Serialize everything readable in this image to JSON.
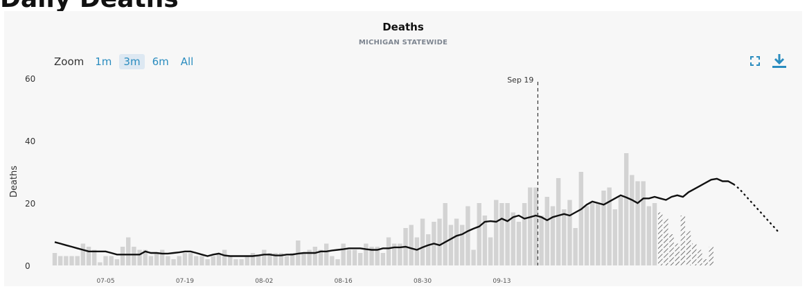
{
  "page": {
    "cut_heading": "Daily Deaths"
  },
  "toolbar": {
    "zoom_label": "Zoom",
    "zoom_options": [
      "1m",
      "3m",
      "6m",
      "All"
    ],
    "zoom_active": "3m",
    "icons": [
      "fullscreen-icon",
      "download-icon"
    ]
  },
  "colors": {
    "bar": "#d3d3d3",
    "line": "#111111",
    "projection_hatch": "#555555",
    "accent": "#2a8cbf",
    "background": "#f7f7f7"
  },
  "chart_data": {
    "type": "bar",
    "title": "Deaths",
    "subtitle": "MICHIGAN STATEWIDE",
    "ylabel": "Deaths",
    "xlabel": "",
    "ylim": [
      0,
      60
    ],
    "yticks": [
      0,
      20,
      40,
      60
    ],
    "grid": false,
    "x_start": "06-26",
    "xticks": [
      "07-05",
      "07-19",
      "08-02",
      "08-16",
      "08-30",
      "09-13"
    ],
    "marker": {
      "label": "Sep 19",
      "date": "09-19"
    },
    "series": [
      {
        "name": "",
        "style": "bars",
        "values": [
          4,
          3,
          3,
          3,
          3,
          7,
          6,
          5,
          1,
          3,
          3,
          2,
          6,
          9,
          6,
          5,
          5,
          3,
          4,
          5,
          3,
          2,
          3,
          4,
          4,
          3,
          3,
          2,
          3,
          4,
          5,
          3,
          2,
          2,
          3,
          4,
          3,
          5,
          4,
          4,
          4,
          3,
          4,
          8,
          4,
          5,
          6,
          5,
          7,
          3,
          2,
          7,
          5,
          5,
          4,
          7,
          6,
          6,
          4,
          9,
          7,
          7,
          12,
          13,
          9,
          15,
          10,
          14,
          15,
          20,
          13,
          15,
          13,
          19,
          5,
          20,
          16,
          9,
          21,
          20,
          20,
          17,
          14,
          20,
          25,
          25,
          16,
          22,
          19,
          28,
          18,
          21,
          12,
          30,
          19,
          20,
          20,
          24,
          25,
          18,
          22,
          36,
          29,
          27,
          27,
          19,
          20
        ],
        "labeled": false
      },
      {
        "name": "",
        "style": "hatched-bars",
        "values": [
          17,
          15,
          10,
          7,
          16,
          11,
          7,
          5,
          2,
          6
        ],
        "labeled": false
      },
      {
        "name": "",
        "style": "line",
        "values": [
          7.5,
          7,
          6.5,
          6,
          5.5,
          5,
          4.5,
          4.5,
          4.5,
          4.5,
          4,
          3.5,
          3.5,
          3.5,
          3.5,
          3.5,
          4.5,
          4,
          4,
          3.8,
          3.8,
          4,
          4.2,
          4.5,
          4.5,
          4,
          3.5,
          3,
          3.5,
          3.8,
          3.2,
          3,
          3,
          3,
          3,
          3,
          3.2,
          3.5,
          3.5,
          3.2,
          3.2,
          3.5,
          3.5,
          3.8,
          4,
          4,
          4,
          4.5,
          4.5,
          4.8,
          5,
          5.2,
          5.5,
          5.5,
          5.5,
          5.2,
          5,
          5,
          5.5,
          5.5,
          5.8,
          5.8,
          6,
          5.5,
          5,
          5.8,
          6.5,
          7,
          6.5,
          7.5,
          8.5,
          9.5,
          10,
          11,
          11.8,
          12.5,
          14,
          14.2,
          14,
          15,
          14.2,
          15.5,
          16,
          15,
          15.5,
          16,
          15.5,
          14.5,
          15.5,
          16,
          16.5,
          16,
          17,
          18,
          19.5,
          20.5,
          20,
          19.5,
          20.5,
          21.5,
          22.5,
          21.8,
          21,
          20,
          21.5,
          21.5,
          22,
          21.5,
          21,
          22,
          22.5,
          22,
          23.5,
          24.5,
          25.5,
          26.5,
          27.5,
          27.8,
          27,
          27,
          26
        ],
        "labeled": false
      },
      {
        "name": "",
        "style": "dotted-line",
        "values": [
          26,
          24.5,
          22.5,
          20.5,
          18.5,
          16.5,
          14.5,
          12.5,
          10.5
        ],
        "labeled": false
      }
    ]
  }
}
